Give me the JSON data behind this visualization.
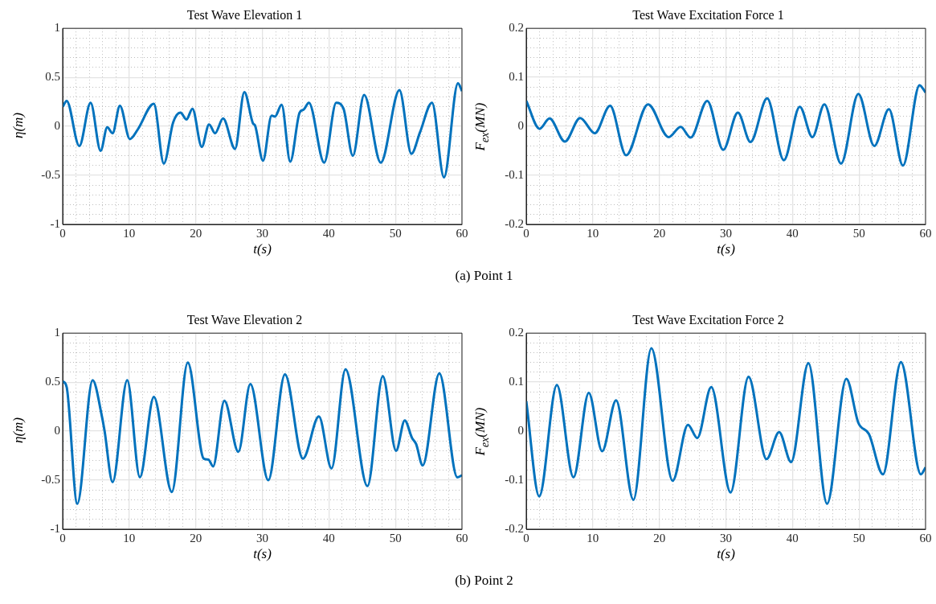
{
  "chart_data": [
    {
      "type": "line",
      "title": "Test Wave Elevation 1",
      "xlabel": "t(s)",
      "ylabel": "η(m)",
      "annotations": [
        "(a) Point 1"
      ],
      "grid": true,
      "legend": false,
      "marker": "none",
      "line_style": "solid",
      "xlim": [
        0,
        60
      ],
      "ylim": [
        -1,
        1
      ],
      "xticks": [
        0,
        {
          "value": 2,
          "label": null
        },
        {
          "value": 4,
          "label": null
        },
        {
          "value": 6,
          "label": null
        },
        {
          "value": 8,
          "label": null
        },
        10,
        {
          "value": 12,
          "label": null
        },
        {
          "value": 14,
          "label": null
        },
        {
          "value": 16,
          "label": null
        },
        {
          "value": 18,
          "label": null
        },
        20,
        {
          "value": 22,
          "label": null
        },
        {
          "value": 24,
          "label": null
        },
        {
          "value": 26,
          "label": null
        },
        {
          "value": 28,
          "label": null
        },
        30,
        {
          "value": 32,
          "label": null
        },
        {
          "value": 34,
          "label": null
        },
        {
          "value": 36,
          "label": null
        },
        {
          "value": 38,
          "label": null
        },
        40,
        {
          "value": 42,
          "label": null
        },
        {
          "value": 44,
          "label": null
        },
        {
          "value": 46,
          "label": null
        },
        {
          "value": 48,
          "label": null
        },
        50,
        {
          "value": 52,
          "label": null
        },
        {
          "value": 54,
          "label": null
        },
        {
          "value": 56,
          "label": null
        },
        {
          "value": 58,
          "label": null
        },
        60
      ],
      "yticks": [
        -1,
        {
          "value": -0.9,
          "label": null
        },
        {
          "value": -0.8,
          "label": null
        },
        {
          "value": -0.7,
          "label": null
        },
        {
          "value": -0.6,
          "label": null
        },
        -0.5,
        {
          "value": -0.4,
          "label": null
        },
        {
          "value": -0.3,
          "label": null
        },
        {
          "value": -0.2,
          "label": null
        },
        {
          "value": -0.1,
          "label": null
        },
        0,
        {
          "value": 0.1,
          "label": null
        },
        {
          "value": 0.2,
          "label": null
        },
        {
          "value": 0.3,
          "label": null
        },
        {
          "value": 0.4,
          "label": null
        },
        0.5,
        {
          "value": 0.6,
          "label": null
        },
        {
          "value": 0.7,
          "label": null
        },
        {
          "value": 0.8,
          "label": null
        },
        {
          "value": 0.9,
          "label": null
        },
        1
      ],
      "series": [
        {
          "color": "#0072bd",
          "x": [
            0,
            0.6,
            2.5,
            4.2,
            5.7,
            6.7,
            7.5,
            8.6,
            10.1,
            11.3,
            13.7,
            15.2,
            16.6,
            17.7,
            18.6,
            19.5,
            20.9,
            22,
            22.9,
            24.1,
            25.9,
            27.3,
            28.6,
            28.9,
            30.1,
            31.4,
            31.9,
            32.9,
            34.2,
            35.6,
            36.2,
            37,
            39.3,
            41.1,
            42.2,
            43.6,
            45.3,
            47.8,
            50.6,
            52.4,
            53.7,
            55.5,
            57.3,
            59.4,
            60
          ],
          "values": [
            0.2,
            0.26,
            -0.2,
            0.24,
            -0.25,
            -0.01,
            -0.07,
            0.21,
            -0.13,
            -0.03,
            0.23,
            -0.38,
            0.04,
            0.14,
            0.07,
            0.18,
            -0.21,
            0.02,
            -0.07,
            0.08,
            -0.23,
            0.35,
            0.03,
            0.01,
            -0.35,
            0.11,
            0.1,
            0.22,
            -0.36,
            0.14,
            0.17,
            0.24,
            -0.37,
            0.24,
            0.18,
            -0.3,
            0.32,
            -0.37,
            0.37,
            -0.28,
            -0.06,
            0.24,
            -0.52,
            0.44,
            0.36
          ]
        }
      ]
    },
    {
      "type": "line",
      "title": "Test Wave Excitation Force 1",
      "xlabel": "t(s)",
      "ylabel": "F$_{ex}$(MN)",
      "grid": true,
      "legend": false,
      "marker": "none",
      "line_style": "solid",
      "xlim": [
        0,
        60
      ],
      "ylim": [
        -0.2,
        0.2
      ],
      "xticks": [
        0,
        {
          "value": 2,
          "label": null
        },
        {
          "value": 4,
          "label": null
        },
        {
          "value": 6,
          "label": null
        },
        {
          "value": 8,
          "label": null
        },
        10,
        {
          "value": 12,
          "label": null
        },
        {
          "value": 14,
          "label": null
        },
        {
          "value": 16,
          "label": null
        },
        {
          "value": 18,
          "label": null
        },
        20,
        {
          "value": 22,
          "label": null
        },
        {
          "value": 24,
          "label": null
        },
        {
          "value": 26,
          "label": null
        },
        {
          "value": 28,
          "label": null
        },
        30,
        {
          "value": 32,
          "label": null
        },
        {
          "value": 34,
          "label": null
        },
        {
          "value": 36,
          "label": null
        },
        {
          "value": 38,
          "label": null
        },
        40,
        {
          "value": 42,
          "label": null
        },
        {
          "value": 44,
          "label": null
        },
        {
          "value": 46,
          "label": null
        },
        {
          "value": 48,
          "label": null
        },
        50,
        {
          "value": 52,
          "label": null
        },
        {
          "value": 54,
          "label": null
        },
        {
          "value": 56,
          "label": null
        },
        {
          "value": 58,
          "label": null
        },
        60
      ],
      "yticks": [
        -0.2,
        {
          "value": -0.18,
          "label": null
        },
        {
          "value": -0.16,
          "label": null
        },
        {
          "value": -0.14,
          "label": null
        },
        {
          "value": -0.12,
          "label": null
        },
        -0.1,
        {
          "value": -0.08,
          "label": null
        },
        {
          "value": -0.06,
          "label": null
        },
        {
          "value": -0.04,
          "label": null
        },
        {
          "value": -0.02,
          "label": null
        },
        0,
        {
          "value": 0.02,
          "label": null
        },
        {
          "value": 0.04,
          "label": null
        },
        {
          "value": 0.06,
          "label": null
        },
        {
          "value": 0.08,
          "label": null
        },
        0.1,
        {
          "value": 0.12,
          "label": null
        },
        {
          "value": 0.14,
          "label": null
        },
        {
          "value": 0.16,
          "label": null
        },
        {
          "value": 0.18,
          "label": null
        },
        0.2
      ],
      "series": [
        {
          "color": "#0072bd",
          "x": [
            0,
            2,
            3.5,
            5.8,
            8.1,
            10.3,
            12.6,
            15,
            18.3,
            21.4,
            23.2,
            24.7,
            27.2,
            29.6,
            31.8,
            33.7,
            36.2,
            38.7,
            41.1,
            43,
            44.8,
            47.3,
            49.9,
            52.3,
            54.5,
            56.6,
            59.1,
            60
          ],
          "values": [
            0.052,
            -0.005,
            0.016,
            -0.031,
            0.017,
            -0.014,
            0.042,
            -0.059,
            0.045,
            -0.022,
            -0.001,
            -0.023,
            0.052,
            -0.048,
            0.028,
            -0.032,
            0.057,
            -0.069,
            0.04,
            -0.022,
            0.045,
            -0.076,
            0.066,
            -0.04,
            0.035,
            -0.08,
            0.084,
            0.069
          ]
        }
      ]
    },
    {
      "type": "line",
      "title": "Test Wave Elevation 2",
      "xlabel": "t(s)",
      "ylabel": "η(m)",
      "annotations": [
        "(b) Point 2"
      ],
      "grid": true,
      "legend": false,
      "marker": "none",
      "line_style": "solid",
      "xlim": [
        0,
        60
      ],
      "ylim": [
        -1,
        1
      ],
      "xticks": [
        0,
        {
          "value": 2,
          "label": null
        },
        {
          "value": 4,
          "label": null
        },
        {
          "value": 6,
          "label": null
        },
        {
          "value": 8,
          "label": null
        },
        10,
        {
          "value": 12,
          "label": null
        },
        {
          "value": 14,
          "label": null
        },
        {
          "value": 16,
          "label": null
        },
        {
          "value": 18,
          "label": null
        },
        20,
        {
          "value": 22,
          "label": null
        },
        {
          "value": 24,
          "label": null
        },
        {
          "value": 26,
          "label": null
        },
        {
          "value": 28,
          "label": null
        },
        30,
        {
          "value": 32,
          "label": null
        },
        {
          "value": 34,
          "label": null
        },
        {
          "value": 36,
          "label": null
        },
        {
          "value": 38,
          "label": null
        },
        40,
        {
          "value": 42,
          "label": null
        },
        {
          "value": 44,
          "label": null
        },
        {
          "value": 46,
          "label": null
        },
        {
          "value": 48,
          "label": null
        },
        50,
        {
          "value": 52,
          "label": null
        },
        {
          "value": 54,
          "label": null
        },
        {
          "value": 56,
          "label": null
        },
        {
          "value": 58,
          "label": null
        },
        60
      ],
      "yticks": [
        -1,
        {
          "value": -0.9,
          "label": null
        },
        {
          "value": -0.8,
          "label": null
        },
        {
          "value": -0.7,
          "label": null
        },
        {
          "value": -0.6,
          "label": null
        },
        -0.5,
        {
          "value": -0.4,
          "label": null
        },
        {
          "value": -0.3,
          "label": null
        },
        {
          "value": -0.2,
          "label": null
        },
        {
          "value": -0.1,
          "label": null
        },
        0,
        {
          "value": 0.1,
          "label": null
        },
        {
          "value": 0.2,
          "label": null
        },
        {
          "value": 0.3,
          "label": null
        },
        {
          "value": 0.4,
          "label": null
        },
        0.5,
        {
          "value": 0.6,
          "label": null
        },
        {
          "value": 0.7,
          "label": null
        },
        {
          "value": 0.8,
          "label": null
        },
        {
          "value": 0.9,
          "label": null
        },
        1
      ],
      "series": [
        {
          "color": "#0072bd",
          "x": [
            0,
            0.6,
            2.2,
            4.5,
            5.9,
            6.3,
            7.5,
            9.7,
            11.6,
            13.7,
            16.4,
            18.8,
            21.2,
            21.9,
            22.6,
            24.3,
            26.4,
            28.2,
            30.9,
            33.4,
            36.1,
            38.5,
            40.4,
            42.5,
            45.8,
            48.1,
            50.1,
            51.4,
            52.5,
            53.1,
            54.1,
            56.6,
            59.3,
            60
          ],
          "values": [
            0.51,
            0.45,
            -0.74,
            0.52,
            0.15,
            0,
            -0.52,
            0.52,
            -0.47,
            0.35,
            -0.62,
            0.7,
            -0.28,
            -0.29,
            -0.36,
            0.31,
            -0.21,
            0.48,
            -0.5,
            0.58,
            -0.28,
            0.15,
            -0.38,
            0.63,
            -0.56,
            0.56,
            -0.2,
            0.11,
            -0.07,
            -0.13,
            -0.35,
            0.59,
            -0.47,
            -0.45
          ]
        }
      ]
    },
    {
      "type": "line",
      "title": "Test Wave Excitation Force 2",
      "xlabel": "t(s)",
      "ylabel": "F$_{ex}$(MN)",
      "grid": true,
      "legend": false,
      "marker": "none",
      "line_style": "solid",
      "xlim": [
        0,
        60
      ],
      "ylim": [
        -0.2,
        0.2
      ],
      "xticks": [
        0,
        {
          "value": 2,
          "label": null
        },
        {
          "value": 4,
          "label": null
        },
        {
          "value": 6,
          "label": null
        },
        {
          "value": 8,
          "label": null
        },
        10,
        {
          "value": 12,
          "label": null
        },
        {
          "value": 14,
          "label": null
        },
        {
          "value": 16,
          "label": null
        },
        {
          "value": 18,
          "label": null
        },
        20,
        {
          "value": 22,
          "label": null
        },
        {
          "value": 24,
          "label": null
        },
        {
          "value": 26,
          "label": null
        },
        {
          "value": 28,
          "label": null
        },
        30,
        {
          "value": 32,
          "label": null
        },
        {
          "value": 34,
          "label": null
        },
        {
          "value": 36,
          "label": null
        },
        {
          "value": 38,
          "label": null
        },
        40,
        {
          "value": 42,
          "label": null
        },
        {
          "value": 44,
          "label": null
        },
        {
          "value": 46,
          "label": null
        },
        {
          "value": 48,
          "label": null
        },
        50,
        {
          "value": 52,
          "label": null
        },
        {
          "value": 54,
          "label": null
        },
        {
          "value": 56,
          "label": null
        },
        {
          "value": 58,
          "label": null
        },
        60
      ],
      "yticks": [
        -0.2,
        {
          "value": -0.18,
          "label": null
        },
        {
          "value": -0.16,
          "label": null
        },
        {
          "value": -0.14,
          "label": null
        },
        {
          "value": -0.12,
          "label": null
        },
        -0.1,
        {
          "value": -0.08,
          "label": null
        },
        {
          "value": -0.06,
          "label": null
        },
        {
          "value": -0.04,
          "label": null
        },
        {
          "value": -0.02,
          "label": null
        },
        0,
        {
          "value": 0.02,
          "label": null
        },
        {
          "value": 0.04,
          "label": null
        },
        {
          "value": 0.06,
          "label": null
        },
        {
          "value": 0.08,
          "label": null
        },
        0.1,
        {
          "value": 0.12,
          "label": null
        },
        {
          "value": 0.14,
          "label": null
        },
        {
          "value": 0.16,
          "label": null
        },
        {
          "value": 0.18,
          "label": null
        },
        0.2
      ],
      "series": [
        {
          "color": "#0072bd",
          "x": [
            0,
            1.95,
            4.6,
            7.1,
            9.4,
            11.4,
            13.5,
            16.1,
            18.8,
            22,
            24.3,
            25.7,
            27.8,
            30.7,
            33.4,
            36.1,
            38,
            39.8,
            42.4,
            45.2,
            48.1,
            49.9,
            51.5,
            53.6,
            56.3,
            59.3,
            60
          ],
          "values": [
            0.061,
            -0.133,
            0.094,
            -0.094,
            0.078,
            -0.041,
            0.063,
            -0.14,
            0.169,
            -0.101,
            0.013,
            -0.014,
            0.09,
            -0.125,
            0.111,
            -0.057,
            -0.002,
            -0.063,
            0.139,
            -0.148,
            0.107,
            0.017,
            -0.006,
            -0.088,
            0.141,
            -0.088,
            -0.074
          ]
        }
      ]
    }
  ]
}
